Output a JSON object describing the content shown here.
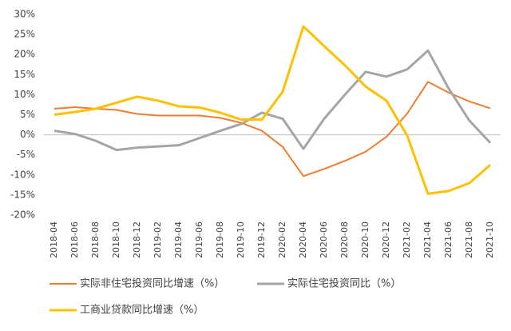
{
  "chart_data": {
    "type": "line",
    "categories": [
      "2018-04",
      "2018-06",
      "2018-08",
      "2018-10",
      "2018-12",
      "2019-02",
      "2019-04",
      "2019-06",
      "2019-08",
      "2019-10",
      "2019-12",
      "2020-02",
      "2020-04",
      "2020-06",
      "2020-08",
      "2020-10",
      "2020-12",
      "2021-02",
      "2021-04",
      "2021-06",
      "2021-08",
      "2021-10"
    ],
    "series": [
      {
        "name": "实际非住宅投资同比增速（%）",
        "color": "#ed7d31",
        "values": [
          6.5,
          6.9,
          6.5,
          6.2,
          5.2,
          4.8,
          4.8,
          4.8,
          4.2,
          3,
          1,
          -3,
          -10.3,
          -8.5,
          -6.5,
          -4.2,
          -0.5,
          5.3,
          13.2,
          10.5,
          8.3,
          6.6
        ]
      },
      {
        "name": "实际住宅投资同比（%）",
        "color": "#a5a5a5",
        "values": [
          1,
          0.2,
          -1.5,
          -3.8,
          -3.2,
          -2.9,
          -2.6,
          -0.8,
          1,
          2.7,
          5.5,
          4,
          -3.5,
          4,
          10,
          15.7,
          14.5,
          16.3,
          21,
          11.5,
          3.5,
          -2
        ]
      },
      {
        "name": "工商业贷款同比增速（%）",
        "color": "#ffc000",
        "values": [
          5,
          5.7,
          6.5,
          8,
          9.5,
          8.5,
          7.1,
          6.8,
          5.5,
          3.8,
          3.8,
          10.7,
          27,
          22.1,
          17.3,
          12,
          8.5,
          -0.2,
          -14.7,
          -14,
          -12,
          -7.5
        ]
      }
    ],
    "ylim": [
      -20,
      30
    ],
    "yticks": [
      {
        "value": -20,
        "label": "-20%"
      },
      {
        "value": -15,
        "label": "-15%"
      },
      {
        "value": -10,
        "label": "-10%"
      },
      {
        "value": -5,
        "label": "-5%"
      },
      {
        "value": 0,
        "label": "0%"
      },
      {
        "value": 5,
        "label": "5%"
      },
      {
        "value": 10,
        "label": "10%"
      },
      {
        "value": 15,
        "label": "15%"
      },
      {
        "value": 20,
        "label": "20%"
      },
      {
        "value": 25,
        "label": "25%"
      },
      {
        "value": 30,
        "label": "30%"
      }
    ],
    "grid": false
  }
}
